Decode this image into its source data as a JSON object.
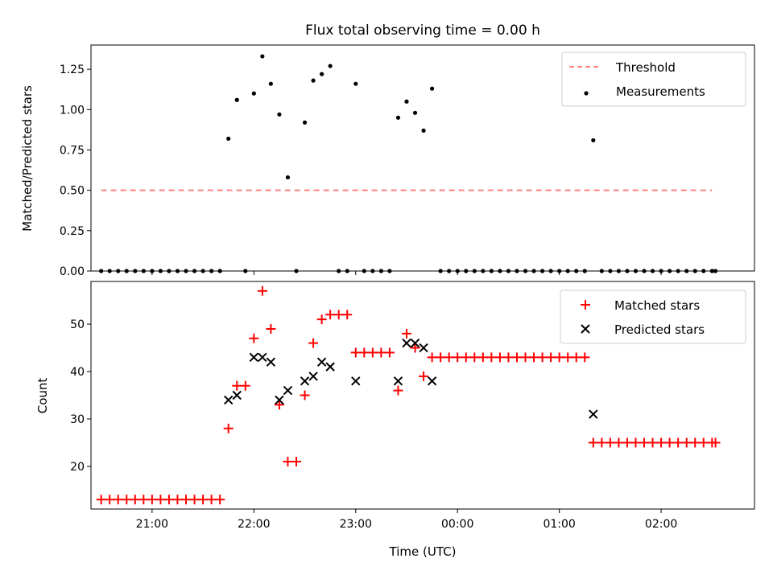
{
  "figure": {
    "title": "Flux total observing time = 0.00 h",
    "xlabel": "Time (UTC)",
    "x_tick_labels": [
      "21:00",
      "22:00",
      "23:00",
      "00:00",
      "01:00",
      "02:00"
    ]
  },
  "colors": {
    "threshold": "#ff7f7f",
    "measurements": "#000000",
    "matched": "#ff0000",
    "predicted": "#000000"
  },
  "chart_data": [
    {
      "type": "scatter",
      "panel": "top",
      "ylabel": "Matched/Predicted stars",
      "xlim": [
        "20:24",
        "02:55"
      ],
      "ylim": [
        0,
        1.4
      ],
      "y_ticks": [
        0.0,
        0.25,
        0.5,
        0.75,
        1.0,
        1.25
      ],
      "y_tick_labels": [
        "0.00",
        "0.25",
        "0.50",
        "0.75",
        "1.00",
        "1.25"
      ],
      "legend_position": "top-right",
      "threshold": {
        "name": "Threshold",
        "style": "dashed line",
        "value": 0.5,
        "x": [
          "20:30",
          "02:30"
        ]
      },
      "series": [
        {
          "name": "Measurements",
          "marker": "dot",
          "x": [
            "20:30",
            "20:35",
            "20:40",
            "20:45",
            "20:50",
            "20:55",
            "21:00",
            "21:05",
            "21:10",
            "21:15",
            "21:20",
            "21:25",
            "21:30",
            "21:35",
            "21:40",
            "21:45",
            "21:50",
            "21:55",
            "22:00",
            "22:05",
            "22:10",
            "22:15",
            "22:20",
            "22:25",
            "22:30",
            "22:35",
            "22:40",
            "22:45",
            "22:50",
            "22:55",
            "23:00",
            "23:05",
            "23:10",
            "23:15",
            "23:20",
            "23:25",
            "23:30",
            "23:35",
            "23:40",
            "23:45",
            "23:50",
            "23:55",
            "00:00",
            "00:05",
            "00:10",
            "00:15",
            "00:20",
            "00:25",
            "00:30",
            "00:35",
            "00:40",
            "00:45",
            "00:50",
            "00:55",
            "01:00",
            "01:05",
            "01:10",
            "01:15",
            "01:20",
            "01:25",
            "01:30",
            "01:35",
            "01:40",
            "01:45",
            "01:50",
            "01:55",
            "02:00",
            "02:05",
            "02:10",
            "02:15",
            "02:20",
            "02:25",
            "02:30",
            "02:32"
          ],
          "y": [
            0,
            0,
            0,
            0,
            0,
            0,
            0,
            0,
            0,
            0,
            0,
            0,
            0,
            0,
            0,
            0.82,
            1.06,
            0,
            1.1,
            1.33,
            1.16,
            0.97,
            0.58,
            0,
            0.92,
            1.18,
            1.22,
            1.27,
            0,
            0,
            1.16,
            0,
            0,
            0,
            0,
            0.95,
            1.05,
            0.98,
            0.87,
            1.13,
            0,
            0,
            0,
            0,
            0,
            0,
            0,
            0,
            0,
            0,
            0,
            0,
            0,
            0,
            0,
            0,
            0,
            0,
            0.81,
            0,
            0,
            0,
            0,
            0,
            0,
            0,
            0,
            0,
            0,
            0,
            0,
            0,
            0,
            0
          ]
        }
      ]
    },
    {
      "type": "scatter",
      "panel": "bottom",
      "ylabel": "Count",
      "xlim": [
        "20:24",
        "02:55"
      ],
      "ylim": [
        11,
        59
      ],
      "y_ticks": [
        20,
        30,
        40,
        50
      ],
      "y_tick_labels": [
        "20",
        "30",
        "40",
        "50"
      ],
      "legend_position": "top-right",
      "series": [
        {
          "name": "Matched stars",
          "marker": "plus",
          "x": [
            "20:30",
            "20:35",
            "20:40",
            "20:45",
            "20:50",
            "20:55",
            "21:00",
            "21:05",
            "21:10",
            "21:15",
            "21:20",
            "21:25",
            "21:30",
            "21:35",
            "21:40",
            "21:45",
            "21:50",
            "21:55",
            "22:00",
            "22:05",
            "22:10",
            "22:15",
            "22:20",
            "22:25",
            "22:30",
            "22:35",
            "22:40",
            "22:45",
            "22:50",
            "22:55",
            "23:00",
            "23:05",
            "23:10",
            "23:15",
            "23:20",
            "23:25",
            "23:30",
            "23:35",
            "23:40",
            "23:45",
            "23:50",
            "23:55",
            "00:00",
            "00:05",
            "00:10",
            "00:15",
            "00:20",
            "00:25",
            "00:30",
            "00:35",
            "00:40",
            "00:45",
            "00:50",
            "00:55",
            "01:00",
            "01:05",
            "01:10",
            "01:15",
            "01:20",
            "01:25",
            "01:30",
            "01:35",
            "01:40",
            "01:45",
            "01:50",
            "01:55",
            "02:00",
            "02:05",
            "02:10",
            "02:15",
            "02:20",
            "02:25",
            "02:30",
            "02:32"
          ],
          "y": [
            13,
            13,
            13,
            13,
            13,
            13,
            13,
            13,
            13,
            13,
            13,
            13,
            13,
            13,
            13,
            28,
            37,
            37,
            47,
            57,
            49,
            33,
            21,
            21,
            35,
            46,
            51,
            52,
            52,
            52,
            44,
            44,
            44,
            44,
            44,
            36,
            48,
            45,
            39,
            43,
            43,
            43,
            43,
            43,
            43,
            43,
            43,
            43,
            43,
            43,
            43,
            43,
            43,
            43,
            43,
            43,
            43,
            43,
            25,
            25,
            25,
            25,
            25,
            25,
            25,
            25,
            25,
            25,
            25,
            25,
            25,
            25,
            25,
            25
          ]
        },
        {
          "name": "Predicted stars",
          "marker": "x",
          "x": [
            "21:45",
            "21:50",
            "22:00",
            "22:05",
            "22:10",
            "22:15",
            "22:20",
            "22:30",
            "22:35",
            "22:40",
            "22:45",
            "23:00",
            "23:25",
            "23:30",
            "23:35",
            "23:40",
            "23:45",
            "01:20"
          ],
          "y": [
            34,
            35,
            43,
            43,
            42,
            34,
            36,
            38,
            39,
            42,
            41,
            38,
            38,
            46,
            46,
            45,
            38,
            31
          ]
        }
      ]
    }
  ]
}
